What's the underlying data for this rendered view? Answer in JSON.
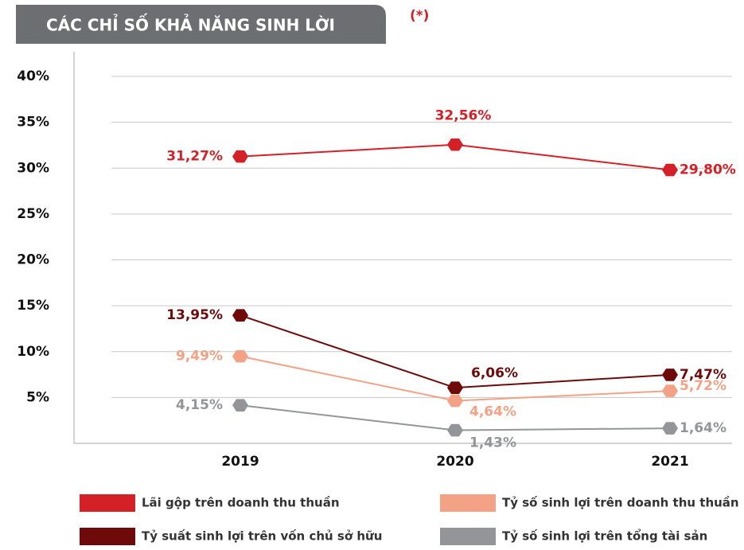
{
  "chart_data": {
    "type": "line",
    "title": "CÁC CHỈ SỐ KHẢ NĂNG SINH LỜI",
    "annotation": "(*)",
    "categories": [
      "2019",
      "2020",
      "2021"
    ],
    "ylim": [
      0,
      40
    ],
    "yticks": [
      {
        "value": 5,
        "label": "5%"
      },
      {
        "value": 10,
        "label": "10%"
      },
      {
        "value": 15,
        "label": "15%"
      },
      {
        "value": 20,
        "label": "20%"
      },
      {
        "value": 25,
        "label": "25%"
      },
      {
        "value": 30,
        "label": "30%"
      },
      {
        "value": 35,
        "label": "35%"
      },
      {
        "value": 40,
        "label": "40%"
      }
    ],
    "grid": true,
    "series": [
      {
        "name": "Lãi gộp trên doanh thu thuần",
        "color": "#d42027",
        "values": [
          31.27,
          32.56,
          29.8
        ],
        "value_labels": [
          "31,27%",
          "32,56%",
          "29,80%"
        ]
      },
      {
        "name": "Tỷ suất sinh lợi trên vốn chủ sở hữu",
        "color": "#6e0a0a",
        "values": [
          13.95,
          6.06,
          7.47
        ],
        "value_labels": [
          "13,95%",
          "6,06%",
          "7,47%"
        ]
      },
      {
        "name": "Tỷ số sinh lợi trên doanh thu thuần",
        "color": "#f4a286",
        "values": [
          9.49,
          4.64,
          5.72
        ],
        "value_labels": [
          "9,49%",
          "4,64%",
          "5,72%"
        ]
      },
      {
        "name": "Tỷ số sinh lợi trên tổng tài sản",
        "color": "#939598",
        "values": [
          4.15,
          1.43,
          1.64
        ],
        "value_labels": [
          "4,15%",
          "1,43%",
          "1,64%"
        ]
      }
    ]
  }
}
